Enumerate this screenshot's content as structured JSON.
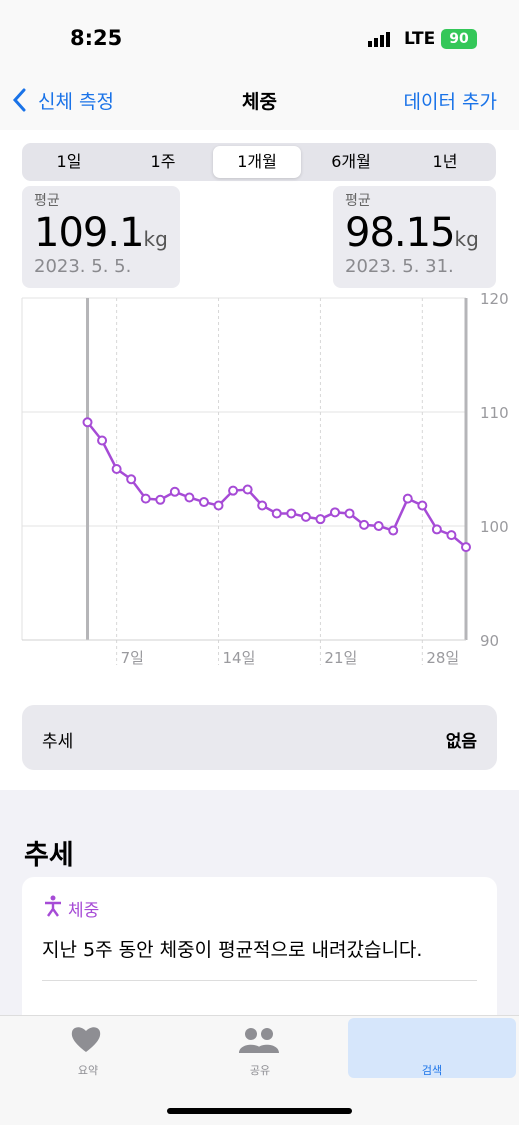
{
  "status": {
    "time": "8:25",
    "network": "LTE",
    "battery": "90"
  },
  "nav": {
    "back": "신체 측정",
    "title": "체중",
    "action": "데이터 추가"
  },
  "segments": {
    "options": [
      "1일",
      "1주",
      "1개월",
      "6개월",
      "1년"
    ],
    "selected": 2
  },
  "summary": {
    "left": {
      "label": "평균",
      "value": "109.1",
      "unit": "kg",
      "date": "2023. 5. 5."
    },
    "right": {
      "label": "평균",
      "value": "98.15",
      "unit": "kg",
      "date": "2023. 5. 31."
    }
  },
  "chart_data": {
    "type": "line",
    "x": [
      5,
      6,
      7,
      8,
      9,
      10,
      11,
      12,
      13,
      14,
      15,
      16,
      17,
      18,
      19,
      20,
      21,
      22,
      23,
      24,
      25,
      26,
      27,
      28,
      29,
      30,
      31
    ],
    "values": [
      109.1,
      107.5,
      105.0,
      104.1,
      102.4,
      102.3,
      103.0,
      102.5,
      102.1,
      101.8,
      103.1,
      103.2,
      101.8,
      101.1,
      101.1,
      100.8,
      100.6,
      101.2,
      101.1,
      100.1,
      100.0,
      99.6,
      102.4,
      101.8,
      99.7,
      99.2,
      98.15
    ],
    "color": "#a64bd6",
    "xlim": [
      0.5,
      31
    ],
    "xticks": [
      {
        "value": 7,
        "label": "7일"
      },
      {
        "value": 14,
        "label": "14일"
      },
      {
        "value": 21,
        "label": "21일"
      },
      {
        "value": 28,
        "label": "28일"
      }
    ],
    "ylim": [
      90,
      120
    ],
    "yticks": [
      90,
      100,
      110,
      120
    ],
    "grid": true
  },
  "trend_row": {
    "label": "추세",
    "value": "없음"
  },
  "section": {
    "title": "추세"
  },
  "card": {
    "tag": "체중",
    "text": "지난 5주 동안 체중이 평균적으로 내려갔습니다."
  },
  "tabs": {
    "items": [
      "요약",
      "공유",
      "검색"
    ],
    "selected": 2
  }
}
